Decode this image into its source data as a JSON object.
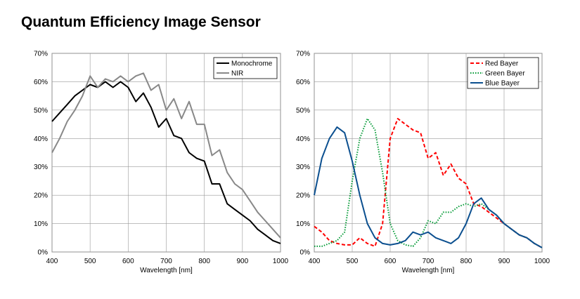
{
  "title": "Quantum Efficiency Image Sensor",
  "chart_data": [
    {
      "type": "line",
      "xlabel": "Wavelength [nm]",
      "legend": "upper right",
      "grid": true,
      "x": [
        400,
        420,
        440,
        460,
        480,
        500,
        520,
        540,
        560,
        580,
        600,
        620,
        640,
        660,
        680,
        700,
        720,
        740,
        760,
        780,
        800,
        820,
        840,
        860,
        880,
        900,
        920,
        940,
        960,
        980,
        1000
      ],
      "xlim": [
        400,
        1000
      ],
      "xticks": [
        400,
        500,
        600,
        700,
        800,
        900,
        1000
      ],
      "ylim": [
        0,
        70
      ],
      "yticks": [
        {
          "value": 0,
          "label": "0%"
        },
        {
          "value": 10,
          "label": "10%"
        },
        {
          "value": 20,
          "label": "20%"
        },
        {
          "value": 30,
          "label": "30%"
        },
        {
          "value": 40,
          "label": "40%"
        },
        {
          "value": 50,
          "label": "50%"
        },
        {
          "value": 60,
          "label": "60%"
        },
        {
          "value": 70,
          "label": "70%"
        }
      ],
      "series": [
        {
          "name": "Monochrome",
          "color": "#000000",
          "dash": "solid",
          "values": [
            46,
            49,
            52,
            55,
            57,
            59,
            58,
            60,
            58,
            60,
            58,
            53,
            56,
            51,
            44,
            47,
            41,
            40,
            35,
            33,
            32,
            24,
            24,
            17,
            15,
            13,
            11,
            8,
            6,
            4,
            3
          ]
        },
        {
          "name": "NIR",
          "color": "#888888",
          "dash": "solid",
          "values": [
            35,
            40,
            46,
            50,
            55,
            62,
            58,
            61,
            60,
            62,
            60,
            62,
            63,
            57,
            59,
            50,
            54,
            47,
            53,
            45,
            45,
            34,
            36,
            28,
            24,
            22,
            18,
            14,
            11,
            8,
            5
          ]
        }
      ]
    },
    {
      "type": "line",
      "xlabel": "Wavelength [nm]",
      "legend": "upper right",
      "grid": true,
      "x": [
        400,
        420,
        440,
        460,
        480,
        500,
        520,
        540,
        560,
        580,
        600,
        620,
        640,
        660,
        680,
        700,
        720,
        740,
        760,
        780,
        800,
        820,
        840,
        860,
        880,
        900,
        920,
        940,
        960,
        980,
        1000
      ],
      "xlim": [
        400,
        1000
      ],
      "xticks": [
        400,
        500,
        600,
        700,
        800,
        900,
        1000
      ],
      "ylim": [
        0,
        70
      ],
      "yticks": [
        {
          "value": 0,
          "label": "0%"
        },
        {
          "value": 10,
          "label": "10%"
        },
        {
          "value": 20,
          "label": "20%"
        },
        {
          "value": 30,
          "label": "30%"
        },
        {
          "value": 40,
          "label": "40%"
        },
        {
          "value": 50,
          "label": "50%"
        },
        {
          "value": 60,
          "label": "60%"
        },
        {
          "value": 70,
          "label": "70%"
        }
      ],
      "series": [
        {
          "name": "Red Bayer",
          "color": "#ff0000",
          "dash": "dashed",
          "values": [
            9,
            7,
            4,
            3,
            2.5,
            2.5,
            5,
            3,
            2,
            10,
            40,
            47,
            45,
            43,
            42,
            33,
            35,
            27,
            31,
            26,
            24,
            17,
            16,
            14,
            12,
            10,
            8,
            6,
            5,
            3,
            1.5
          ]
        },
        {
          "name": "Green Bayer",
          "color": "#009933",
          "dash": "dotted",
          "values": [
            2,
            2,
            3,
            4,
            7,
            25,
            40,
            47,
            43,
            28,
            10,
            4,
            2.5,
            2,
            5,
            11,
            10,
            14,
            14,
            16,
            17,
            16,
            17,
            15,
            13,
            10,
            8,
            6,
            5,
            3,
            1.5
          ]
        },
        {
          "name": "Blue Bayer",
          "color": "#0b4f8f",
          "dash": "solid",
          "values": [
            20,
            33,
            40,
            44,
            42,
            32,
            20,
            10,
            5,
            3,
            2.5,
            3,
            4,
            7,
            6,
            7,
            5,
            4,
            3,
            5,
            10,
            17,
            19,
            15,
            13,
            10,
            8,
            6,
            5,
            3,
            1.5
          ]
        }
      ]
    }
  ]
}
